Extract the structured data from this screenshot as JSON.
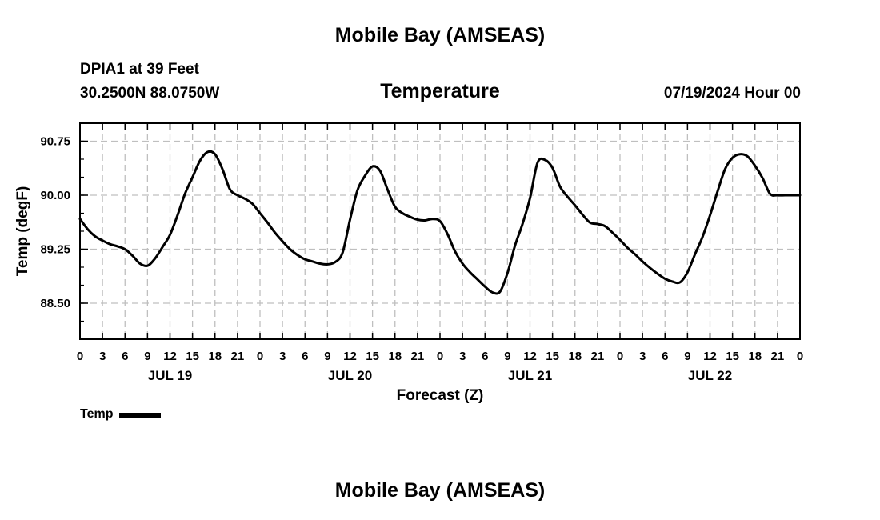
{
  "region_title": "Mobile Bay (AMSEAS)",
  "station": "DPIA1 at 39 Feet",
  "coords": "30.2500N  88.0750W",
  "run_time": "07/19/2024 Hour 00",
  "chart_data": {
    "type": "line",
    "title": "Temperature",
    "xlabel": "Forecast (Z)",
    "ylabel": "Temp (degF)",
    "ylim": [
      88.0,
      91.0
    ],
    "yticks": [
      "88.50",
      "89.25",
      "90.00",
      "90.75"
    ],
    "xlim": [
      0,
      96
    ],
    "hour_tick_labels": [
      "0",
      "3",
      "6",
      "9",
      "12",
      "15",
      "18",
      "21",
      "0",
      "3",
      "6",
      "9",
      "12",
      "15",
      "18",
      "21",
      "0",
      "3",
      "6",
      "9",
      "12",
      "15",
      "18",
      "21",
      "0",
      "3",
      "6",
      "9",
      "12",
      "15",
      "18",
      "21",
      "0"
    ],
    "date_labels": [
      {
        "hour": 12,
        "label": "JUL 19"
      },
      {
        "hour": 36,
        "label": "JUL 20"
      },
      {
        "hour": 60,
        "label": "JUL 21"
      },
      {
        "hour": 84,
        "label": "JUL 22"
      }
    ],
    "grid": true,
    "legend_position": "bottom-left",
    "series": [
      {
        "name": "Temp",
        "color": "#000000",
        "x": [
          0,
          1,
          2,
          3,
          4,
          5,
          6,
          7,
          8,
          9,
          10,
          11,
          12,
          13,
          14,
          15,
          16,
          17,
          18,
          19,
          20,
          21,
          22,
          23,
          24,
          25,
          26,
          27,
          28,
          29,
          30,
          31,
          32,
          33,
          34,
          35,
          36,
          37,
          38,
          39,
          40,
          41,
          42,
          43,
          44,
          45,
          46,
          47,
          48,
          49,
          50,
          51,
          52,
          53,
          54,
          55,
          56,
          57,
          58,
          59,
          60,
          61,
          62,
          63,
          64,
          65,
          66,
          67,
          68,
          69,
          70,
          71,
          72,
          73,
          74,
          75,
          76,
          77,
          78,
          79,
          80,
          81,
          82,
          83,
          84,
          85,
          86,
          87,
          88,
          89,
          90,
          91,
          92,
          93,
          94,
          95,
          96
        ],
        "y": [
          89.67,
          89.53,
          89.43,
          89.37,
          89.32,
          89.29,
          89.25,
          89.16,
          89.05,
          89.02,
          89.12,
          89.28,
          89.45,
          89.72,
          90.02,
          90.25,
          90.48,
          90.6,
          90.57,
          90.36,
          90.08,
          90.0,
          89.95,
          89.88,
          89.75,
          89.62,
          89.48,
          89.36,
          89.25,
          89.17,
          89.11,
          89.08,
          89.05,
          89.04,
          89.07,
          89.2,
          89.66,
          90.07,
          90.27,
          90.4,
          90.34,
          90.08,
          89.84,
          89.75,
          89.7,
          89.66,
          89.65,
          89.67,
          89.64,
          89.46,
          89.22,
          89.05,
          88.93,
          88.83,
          88.73,
          88.65,
          88.66,
          88.92,
          89.3,
          89.6,
          89.96,
          90.45,
          90.49,
          90.38,
          90.12,
          89.98,
          89.86,
          89.73,
          89.62,
          89.6,
          89.57,
          89.48,
          89.38,
          89.27,
          89.18,
          89.08,
          88.99,
          88.91,
          88.84,
          88.8,
          88.79,
          88.93,
          89.18,
          89.42,
          89.72,
          90.05,
          90.36,
          90.52,
          90.57,
          90.54,
          90.41,
          90.24,
          90.02,
          90.0,
          90.0,
          90.0,
          90.0
        ]
      }
    ]
  }
}
